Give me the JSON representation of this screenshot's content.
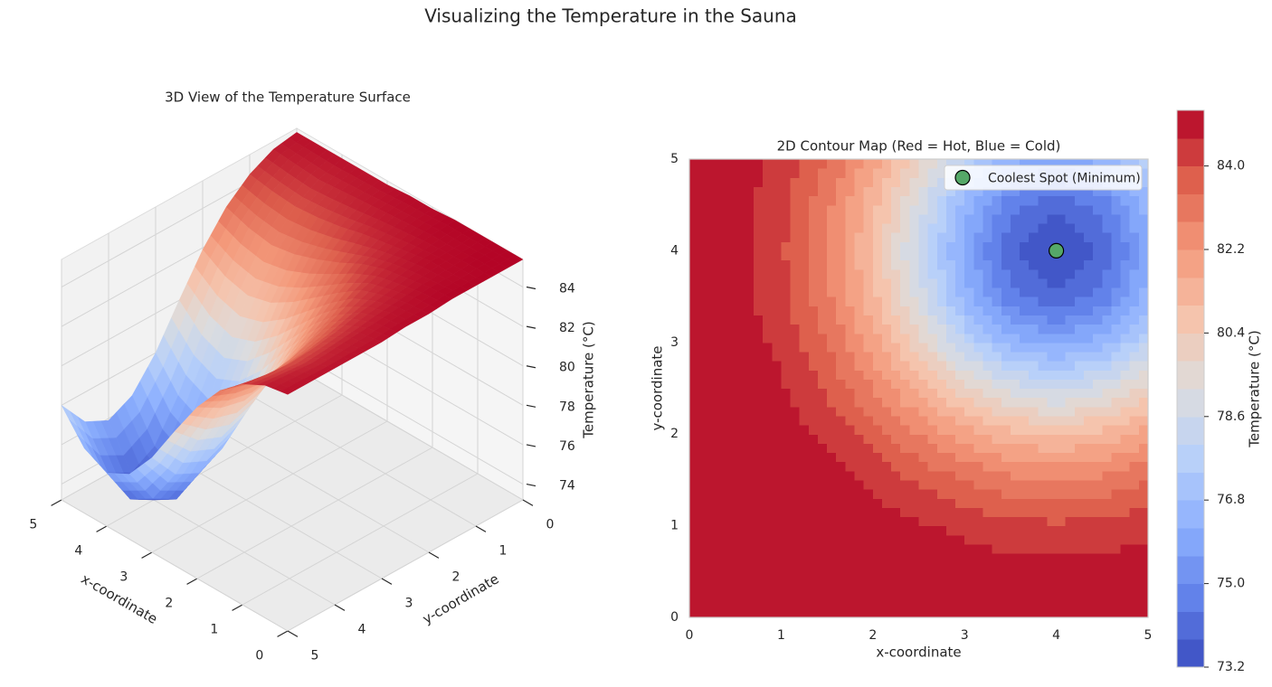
{
  "title": "Visualizing the Temperature in the Sauna",
  "chart_data": [
    {
      "type": "surface3d",
      "title": "3D View of the Temperature Surface",
      "x": [
        0,
        0.5,
        1,
        1.5,
        2,
        2.5,
        3,
        3.5,
        4,
        4.5,
        5
      ],
      "y": [
        0,
        0.5,
        1,
        1.5,
        2,
        2.5,
        3,
        3.5,
        4,
        4.5,
        5
      ],
      "z": [
        [
          85.4,
          85.4,
          85.4,
          85.4,
          85.3,
          85.3,
          85.2,
          85.2,
          85.2,
          85.2,
          85.2
        ],
        [
          85.4,
          85.4,
          85.3,
          85.3,
          85.2,
          85.1,
          85.0,
          84.9,
          84.8,
          84.9,
          85.0
        ],
        [
          85.4,
          85.3,
          85.3,
          85.1,
          84.9,
          84.7,
          84.4,
          84.2,
          84.1,
          84.2,
          84.4
        ],
        [
          85.4,
          85.3,
          85.1,
          84.9,
          84.5,
          83.9,
          83.4,
          83.0,
          82.8,
          83.0,
          83.4
        ],
        [
          85.3,
          85.2,
          84.9,
          84.5,
          83.7,
          82.8,
          81.9,
          81.2,
          80.9,
          81.2,
          81.9
        ],
        [
          85.3,
          85.1,
          84.7,
          83.9,
          82.8,
          81.4,
          80.0,
          78.9,
          78.4,
          78.9,
          80.0
        ],
        [
          85.2,
          85.0,
          84.4,
          83.4,
          81.9,
          80.0,
          78.0,
          76.5,
          75.9,
          76.5,
          78.0
        ],
        [
          85.2,
          84.9,
          84.2,
          83.0,
          81.2,
          78.9,
          76.5,
          74.6,
          73.9,
          74.6,
          76.5
        ],
        [
          85.2,
          84.8,
          84.1,
          82.8,
          80.9,
          78.4,
          75.9,
          73.9,
          73.2,
          73.9,
          75.9
        ],
        [
          85.2,
          84.9,
          84.2,
          83.0,
          81.2,
          78.9,
          76.5,
          74.6,
          73.9,
          74.6,
          76.5
        ],
        [
          85.2,
          85.0,
          84.4,
          83.4,
          81.9,
          80.0,
          78.0,
          76.5,
          75.9,
          76.5,
          78.0
        ]
      ],
      "xlabel": "x-coordinate",
      "ylabel": "y-coordinate",
      "zlabel": "Temperature (°C)",
      "xlim": [
        0,
        5
      ],
      "ylim": [
        0,
        5
      ],
      "zlim": [
        73.2,
        85.4
      ],
      "xticks": [
        0,
        1,
        2,
        3,
        4,
        5
      ],
      "yticks": [
        0,
        1,
        2,
        3,
        4,
        5
      ],
      "zticks": [
        74,
        76,
        78,
        80,
        82,
        84
      ],
      "colormap": "coolwarm"
    },
    {
      "type": "contour",
      "title": "2D Contour Map (Red = Hot, Blue = Cold)",
      "x": [
        0,
        0.5,
        1,
        1.5,
        2,
        2.5,
        3,
        3.5,
        4,
        4.5,
        5
      ],
      "y": [
        0,
        0.5,
        1,
        1.5,
        2,
        2.5,
        3,
        3.5,
        4,
        4.5,
        5
      ],
      "z": [
        [
          85.4,
          85.4,
          85.4,
          85.4,
          85.3,
          85.3,
          85.2,
          85.2,
          85.2,
          85.2,
          85.2
        ],
        [
          85.4,
          85.4,
          85.3,
          85.3,
          85.2,
          85.1,
          85.0,
          84.9,
          84.8,
          84.9,
          85.0
        ],
        [
          85.4,
          85.3,
          85.3,
          85.1,
          84.9,
          84.7,
          84.4,
          84.2,
          84.1,
          84.2,
          84.4
        ],
        [
          85.4,
          85.3,
          85.1,
          84.9,
          84.5,
          83.9,
          83.4,
          83.0,
          82.8,
          83.0,
          83.4
        ],
        [
          85.3,
          85.2,
          84.9,
          84.5,
          83.7,
          82.8,
          81.9,
          81.2,
          80.9,
          81.2,
          81.9
        ],
        [
          85.3,
          85.1,
          84.7,
          83.9,
          82.8,
          81.4,
          80.0,
          78.9,
          78.4,
          78.9,
          80.0
        ],
        [
          85.2,
          85.0,
          84.4,
          83.4,
          81.9,
          80.0,
          78.0,
          76.5,
          75.9,
          76.5,
          78.0
        ],
        [
          85.2,
          84.9,
          84.2,
          83.0,
          81.2,
          78.9,
          76.5,
          74.6,
          73.9,
          74.6,
          76.5
        ],
        [
          85.2,
          84.8,
          84.1,
          82.8,
          80.9,
          78.4,
          75.9,
          73.9,
          73.2,
          73.9,
          75.9
        ],
        [
          85.2,
          84.9,
          84.2,
          83.0,
          81.2,
          78.9,
          76.5,
          74.6,
          73.9,
          74.6,
          76.5
        ],
        [
          85.2,
          85.0,
          84.4,
          83.4,
          81.9,
          80.0,
          78.0,
          76.5,
          75.9,
          76.5,
          78.0
        ]
      ],
      "xlabel": "x-coordinate",
      "ylabel": "y-coordinate",
      "xlim": [
        0,
        5
      ],
      "ylim": [
        0,
        5
      ],
      "xticks": [
        0,
        1,
        2,
        3,
        4,
        5
      ],
      "yticks": [
        0,
        1,
        2,
        3,
        4,
        5
      ],
      "levels": [
        73.2,
        73.8,
        74.4,
        75,
        75.6,
        76.2,
        76.8,
        77.4,
        78,
        78.6,
        79.2,
        79.8,
        80.4,
        81,
        81.6,
        82.2,
        82.8,
        83.4,
        84,
        84.6,
        85.2
      ],
      "colormap": "coolwarm",
      "colorbar": {
        "label": "Temperature (°C)",
        "ticks": [
          73.2,
          {
            "value": 75,
            "label": "75.0"
          },
          76.8,
          78.6,
          80.4,
          82.2,
          {
            "value": 84,
            "label": "84.0"
          }
        ]
      },
      "marker": {
        "name": "Coolest Spot (Minimum)",
        "x": 4,
        "y": 4,
        "color": "#55a868"
      },
      "legend": "upper right"
    }
  ]
}
